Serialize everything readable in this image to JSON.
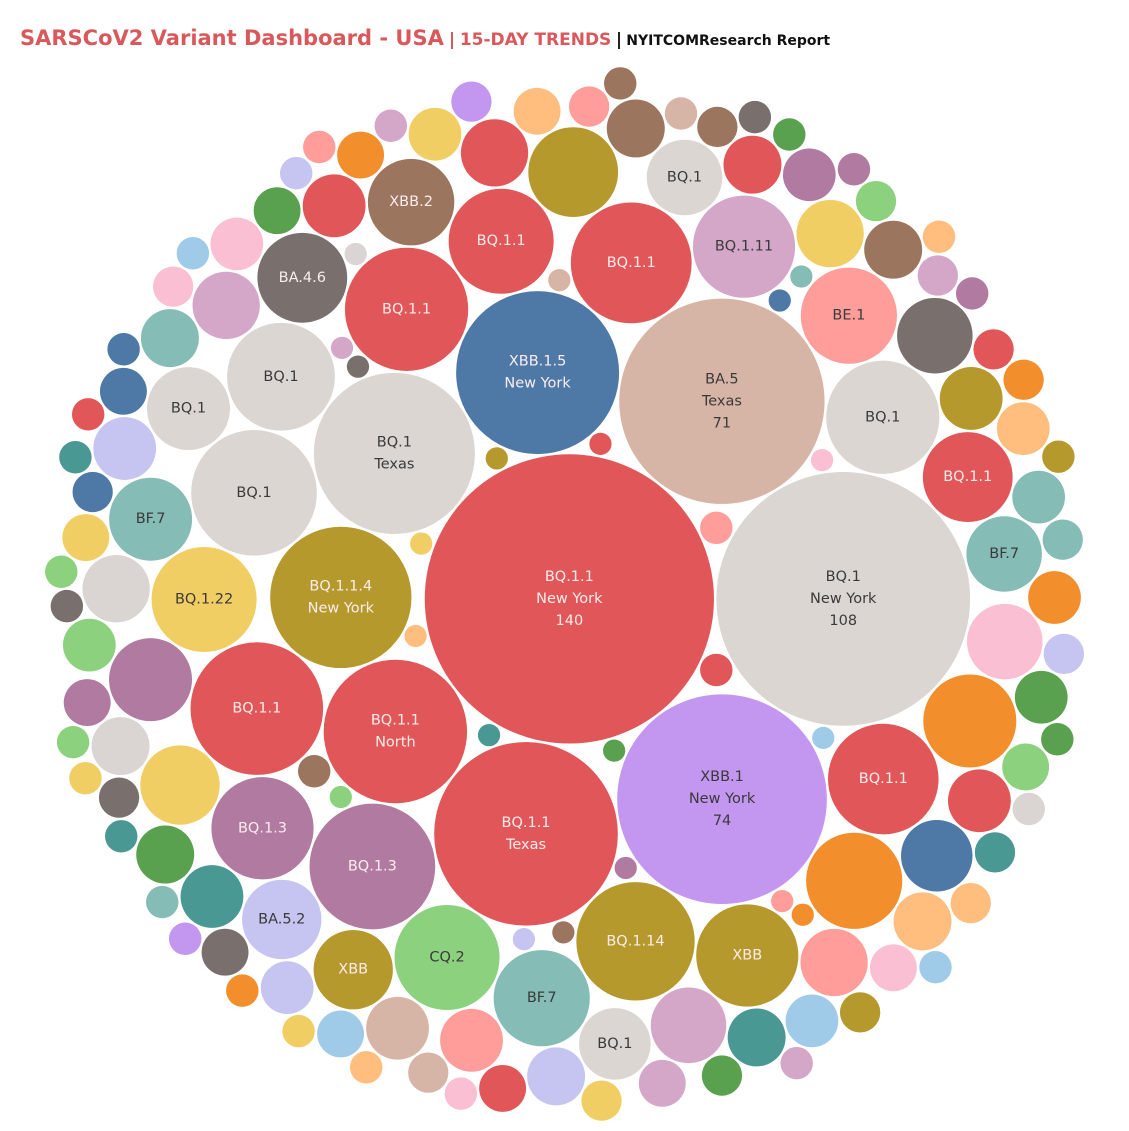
{
  "chart_data": {
    "type": "packed-bubble",
    "title": "SARSCoV2 Variant Dashboard - USA",
    "subtitle": "15-DAY TRENDS",
    "source": "NYITCOMResearch Report",
    "bubbles": [
      {
        "label": "BQ.1.1",
        "region": "New York",
        "value": 140,
        "show_value": true,
        "color": "#e15759"
      },
      {
        "label": "BQ.1",
        "region": "New York",
        "value": 108,
        "show_value": true,
        "color": "#dcd6d2"
      },
      {
        "label": "XBB.1",
        "region": "New York",
        "value": 74,
        "show_value": true,
        "color": "#c396f0"
      },
      {
        "label": "BA.5",
        "region": "Texas",
        "value": 71,
        "show_value": true,
        "color": "#d7b5a6"
      },
      {
        "label": "BQ.1.1",
        "region": "Texas",
        "value": 57,
        "color": "#e15759"
      },
      {
        "label": "XBB.1.5",
        "region": "New York",
        "value": 45,
        "color": "#4e79a7"
      },
      {
        "label": "BQ.1",
        "region": "Texas",
        "value": 44,
        "color": "#dcd6d2"
      },
      {
        "label": "BQ.1.1",
        "region": "North",
        "value": 35,
        "color": "#e15759"
      },
      {
        "label": "BQ.1.1.4",
        "region": "New York",
        "value": 34,
        "color": "#b6992d"
      },
      {
        "label": "BQ.1.1",
        "value": 30,
        "color": "#e15759"
      },
      {
        "label": "BQ.1.3",
        "value": 27,
        "color": "#b07aa1"
      },
      {
        "label": "BQ.1",
        "value": 27,
        "color": "#dcd6d2"
      },
      {
        "label": "BQ.1.1",
        "value": 26,
        "color": "#e15759"
      },
      {
        "label": "BQ.1.1",
        "value": 25,
        "color": "#e15759"
      },
      {
        "label": "BQ.1.14",
        "value": 24,
        "color": "#b6992d"
      },
      {
        "label": "BQ.1",
        "value": 22,
        "color": "#dcd6d2"
      },
      {
        "label": "BQ.1.1",
        "value": 21,
        "color": "#e15759"
      },
      {
        "label": "BQ.1",
        "value": 20,
        "color": "#dcd6d2"
      },
      {
        "label": "BQ.1.1",
        "value": 19,
        "color": "#e15759"
      },
      {
        "label": "BQ.1.22",
        "value": 19,
        "color": "#f1ce63"
      },
      {
        "label": "CQ.2",
        "value": 19,
        "color": "#8cd17d"
      },
      {
        "label": "BQ.1.3",
        "value": 18,
        "color": "#b07aa1"
      },
      {
        "label": "BQ.1.11",
        "value": 18,
        "color": "#d4a6c8"
      },
      {
        "label": "XBB",
        "value": 18,
        "color": "#b6992d"
      },
      {
        "label": "BE.1",
        "value": 16,
        "color": "#ff9d9a"
      },
      {
        "label": "BF.7",
        "value": 16,
        "color": "#86bcb6"
      },
      {
        "label": "BQ.1.1",
        "value": 14,
        "color": "#e15759"
      },
      {
        "label": "BA.4.6",
        "value": 14,
        "color": "#79706e"
      },
      {
        "label": "XBB.2",
        "value": 13,
        "color": "#9c755f"
      },
      {
        "label": "BQ.1",
        "value": 12,
        "color": "#dcd6d2"
      },
      {
        "label": "BF.7",
        "value": 12,
        "color": "#86bcb6"
      },
      {
        "label": "XBB",
        "value": 11,
        "color": "#b6992d"
      },
      {
        "label": "BA.5.2",
        "value": 11,
        "color": "#c6c4f0"
      },
      {
        "label": "BQ.1",
        "value": 10,
        "color": "#dcd6d2"
      },
      {
        "label": "BF.7",
        "value": 10,
        "color": "#86bcb6"
      },
      {
        "label": "BQ.1",
        "value": 9,
        "color": "#dcd6d2"
      },
      {
        "value": 16,
        "color": "#f28e2b"
      },
      {
        "value": 15,
        "color": "#f28e2b"
      },
      {
        "value": 14,
        "color": "#b6992d"
      },
      {
        "value": 12,
        "color": "#b07aa1"
      },
      {
        "value": 11,
        "color": "#f1ce63"
      },
      {
        "value": 10,
        "color": "#fabfd2"
      },
      {
        "value": 10,
        "color": "#d4a6c8"
      },
      {
        "value": 10,
        "color": "#79706e"
      },
      {
        "value": 9,
        "color": "#4e79a7"
      },
      {
        "value": 8,
        "color": "#f1ce63"
      },
      {
        "value": 8,
        "color": "#ff9d9a"
      },
      {
        "value": 8,
        "color": "#d4a6c8"
      },
      {
        "value": 8,
        "color": "#e15759"
      },
      {
        "value": 8,
        "color": "#dad4d2"
      },
      {
        "value": 7,
        "color": "#b6992d"
      },
      {
        "value": 7,
        "color": "#ff9d9a"
      },
      {
        "value": 7,
        "color": "#e15759"
      },
      {
        "value": 7,
        "color": "#e15759"
      },
      {
        "value": 7,
        "color": "#d7b5a6"
      },
      {
        "value": 7,
        "color": "#499894"
      },
      {
        "value": 7,
        "color": "#c6c4f0"
      },
      {
        "value": 6,
        "color": "#e15759"
      },
      {
        "value": 6,
        "color": "#dad4d2"
      },
      {
        "value": 6,
        "color": "#9c755f"
      },
      {
        "value": 6,
        "color": "#9c755f"
      },
      {
        "value": 6,
        "color": "#499894"
      },
      {
        "value": 6,
        "color": "#86bcb6"
      },
      {
        "value": 6,
        "color": "#c6c4f0"
      },
      {
        "value": 6,
        "color": "#59a14f"
      },
      {
        "value": 6,
        "color": "#ffbe7d"
      },
      {
        "value": 5,
        "color": "#86bcb6"
      },
      {
        "value": 5,
        "color": "#c6c4f0"
      },
      {
        "value": 5,
        "color": "#59a14f"
      },
      {
        "value": 5,
        "color": "#8cd17d"
      },
      {
        "value": 5,
        "color": "#f1ce63"
      },
      {
        "value": 5,
        "color": "#ffbe7d"
      },
      {
        "value": 5,
        "color": "#f28e2b"
      },
      {
        "value": 5,
        "color": "#fabfd2"
      },
      {
        "value": 5,
        "color": "#a0cbe8"
      },
      {
        "value": 5,
        "color": "#b07aa1"
      },
      {
        "value": 4,
        "color": "#59a14f"
      },
      {
        "value": 4,
        "color": "#8cd17d"
      },
      {
        "value": 4,
        "color": "#f1ce63"
      },
      {
        "value": 4,
        "color": "#ffbe7d"
      },
      {
        "value": 4,
        "color": "#f28e2b"
      },
      {
        "value": 4,
        "color": "#fabfd2"
      },
      {
        "value": 4,
        "color": "#a0cbe8"
      },
      {
        "value": 4,
        "color": "#4e79a7"
      },
      {
        "value": 4,
        "color": "#b07aa1"
      },
      {
        "value": 4,
        "color": "#d4a6c8"
      },
      {
        "value": 4,
        "color": "#79706e"
      },
      {
        "value": 4,
        "color": "#e15759"
      },
      {
        "value": 3,
        "color": "#4e79a7"
      },
      {
        "value": 3,
        "color": "#d4a6c8"
      },
      {
        "value": 3,
        "color": "#79706e"
      },
      {
        "value": 3,
        "color": "#e15759"
      },
      {
        "value": 3,
        "color": "#ff9d9a"
      },
      {
        "value": 3,
        "color": "#d7b5a6"
      },
      {
        "value": 3,
        "color": "#9c755f"
      },
      {
        "value": 3,
        "color": "#499894"
      },
      {
        "value": 3,
        "color": "#86bcb6"
      },
      {
        "value": 3,
        "color": "#c6c4f0"
      },
      {
        "value": 3,
        "color": "#59a14f"
      },
      {
        "value": 3,
        "color": "#8cd17d"
      },
      {
        "value": 3,
        "color": "#f1ce63"
      },
      {
        "value": 3,
        "color": "#ffbe7d"
      },
      {
        "value": 3,
        "color": "#f28e2b"
      },
      {
        "value": 3,
        "color": "#fabfd2"
      },
      {
        "value": 3,
        "color": "#b6992d"
      },
      {
        "value": 3,
        "color": "#c396f0"
      },
      {
        "value": 2,
        "color": "#e15759"
      },
      {
        "value": 2,
        "color": "#ff9d9a"
      },
      {
        "value": 2,
        "color": "#9c755f"
      },
      {
        "value": 2,
        "color": "#d7b5a6"
      },
      {
        "value": 2,
        "color": "#79706e"
      },
      {
        "value": 2,
        "color": "#dad4d2"
      },
      {
        "value": 2,
        "color": "#b07aa1"
      },
      {
        "value": 2,
        "color": "#d4a6c8"
      },
      {
        "value": 2,
        "color": "#c6c4f0"
      },
      {
        "value": 2,
        "color": "#fabfd2"
      },
      {
        "value": 2,
        "color": "#499894"
      },
      {
        "value": 2,
        "color": "#86bcb6"
      },
      {
        "value": 2,
        "color": "#59a14f"
      },
      {
        "value": 2,
        "color": "#8cd17d"
      },
      {
        "value": 2,
        "color": "#b6992d"
      },
      {
        "value": 2,
        "color": "#f1ce63"
      },
      {
        "value": 2,
        "color": "#f28e2b"
      },
      {
        "value": 2,
        "color": "#ffbe7d"
      },
      {
        "value": 2,
        "color": "#4e79a7"
      },
      {
        "value": 2,
        "color": "#a0cbe8"
      },
      {
        "value": 2,
        "color": "#c396f0"
      },
      {
        "value": 2,
        "color": "#59a14f"
      },
      {
        "value": 2,
        "color": "#499894"
      },
      {
        "value": 2,
        "color": "#e15759"
      },
      {
        "value": 2,
        "color": "#b07aa1"
      },
      {
        "value": 2,
        "color": "#f1ce63"
      },
      {
        "value": 2,
        "color": "#79706e"
      },
      {
        "value": 2,
        "color": "#ff9d9a"
      },
      {
        "value": 2,
        "color": "#8cd17d"
      },
      {
        "value": 2,
        "color": "#d4a6c8"
      },
      {
        "value": 2,
        "color": "#ffbe7d"
      },
      {
        "value": 2,
        "color": "#9c755f"
      },
      {
        "value": 2,
        "color": "#a0cbe8"
      },
      {
        "value": 1,
        "color": "#e15759"
      },
      {
        "value": 1,
        "color": "#59a14f"
      },
      {
        "value": 1,
        "color": "#499894"
      },
      {
        "value": 1,
        "color": "#b6992d"
      },
      {
        "value": 1,
        "color": "#f1ce63"
      },
      {
        "value": 1,
        "color": "#ffbe7d"
      },
      {
        "value": 1,
        "color": "#b07aa1"
      },
      {
        "value": 1,
        "color": "#fabfd2"
      },
      {
        "value": 1,
        "color": "#a0cbe8"
      },
      {
        "value": 1,
        "color": "#8cd17d"
      },
      {
        "value": 1,
        "color": "#79706e"
      },
      {
        "value": 1,
        "color": "#d7b5a6"
      },
      {
        "value": 1,
        "color": "#9c755f"
      },
      {
        "value": 1,
        "color": "#d4a6c8"
      },
      {
        "value": 1,
        "color": "#c6c4f0"
      },
      {
        "value": 1,
        "color": "#4e79a7"
      },
      {
        "value": 1,
        "color": "#ff9d9a"
      },
      {
        "value": 1,
        "color": "#f28e2b"
      },
      {
        "value": 1,
        "color": "#86bcb6"
      },
      {
        "value": 1,
        "color": "#dad4d2"
      }
    ]
  }
}
